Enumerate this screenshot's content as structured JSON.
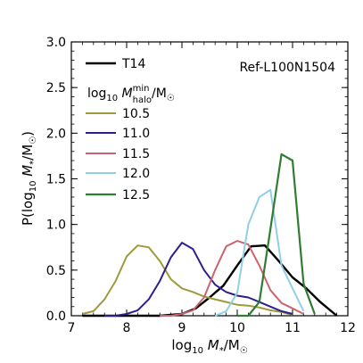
{
  "chart_data": {
    "type": "line",
    "annotation": "Ref-L100N1504",
    "legend_title": {
      "base": "log",
      "sub": "10",
      "sym": "M",
      "sup": "min",
      "low": "halo",
      "tail": "/M",
      "sun": "☉"
    },
    "xlabel": {
      "base": "log",
      "sub": "10",
      "sym": "M",
      "star": "*",
      "tail": "/M",
      "sun": "☉"
    },
    "ylabel": {
      "pre": "P(log",
      "sub": "10",
      "sym": "M",
      "star": "*",
      "tail": "/M",
      "sun": "☉",
      "close": ")"
    },
    "xlim": [
      7,
      12
    ],
    "ylim": [
      0,
      3
    ],
    "xticks": [
      7,
      8,
      9,
      10,
      11,
      12
    ],
    "yticks": [
      "0.0",
      "0.5",
      "1.0",
      "1.5",
      "2.0",
      "2.5",
      "3.0"
    ],
    "legend_position": "top-left",
    "series": [
      {
        "name": "T14",
        "color": "#000000",
        "width": 2.4,
        "x": [
          7.2,
          8.0,
          8.6,
          9.0,
          9.25,
          9.5,
          9.75,
          10.0,
          10.25,
          10.5,
          10.75,
          11.0,
          11.25,
          11.5,
          11.8
        ],
        "y": [
          0.0,
          0.0,
          0.0,
          0.02,
          0.08,
          0.2,
          0.33,
          0.55,
          0.76,
          0.77,
          0.6,
          0.42,
          0.3,
          0.15,
          0.0
        ]
      },
      {
        "name": "10.5",
        "color": "#9e9a3a",
        "width": 2.0,
        "x": [
          7.2,
          7.4,
          7.6,
          7.8,
          8.0,
          8.2,
          8.4,
          8.6,
          8.8,
          9.0,
          9.2,
          9.4,
          9.6,
          9.8,
          10.0,
          10.2,
          10.4,
          10.6,
          10.8,
          11.0
        ],
        "y": [
          0.02,
          0.05,
          0.18,
          0.38,
          0.65,
          0.77,
          0.75,
          0.6,
          0.4,
          0.3,
          0.26,
          0.21,
          0.18,
          0.15,
          0.12,
          0.11,
          0.09,
          0.06,
          0.04,
          0.01
        ]
      },
      {
        "name": "11.0",
        "color": "#2d1e8a",
        "width": 2.0,
        "x": [
          7.6,
          7.8,
          8.0,
          8.2,
          8.4,
          8.6,
          8.8,
          9.0,
          9.2,
          9.4,
          9.6,
          9.8,
          10.0,
          10.2,
          10.4,
          10.6,
          10.8,
          11.0
        ],
        "y": [
          0.0,
          0.0,
          0.02,
          0.06,
          0.18,
          0.38,
          0.64,
          0.8,
          0.73,
          0.5,
          0.34,
          0.26,
          0.22,
          0.2,
          0.15,
          0.1,
          0.05,
          0.02
        ]
      },
      {
        "name": "11.5",
        "color": "#cc6470",
        "width": 2.0,
        "x": [
          8.6,
          8.8,
          9.0,
          9.2,
          9.4,
          9.6,
          9.8,
          10.0,
          10.2,
          10.4,
          10.6,
          10.8,
          11.0,
          11.2
        ],
        "y": [
          0.0,
          0.0,
          0.02,
          0.06,
          0.2,
          0.5,
          0.76,
          0.82,
          0.78,
          0.55,
          0.28,
          0.14,
          0.08,
          0.02
        ]
      },
      {
        "name": "12.0",
        "color": "#8fd0e8",
        "width": 2.0,
        "x": [
          9.6,
          9.8,
          10.0,
          10.2,
          10.4,
          10.6,
          10.8,
          11.0,
          11.2
        ],
        "y": [
          0.0,
          0.05,
          0.25,
          1.0,
          1.3,
          1.38,
          0.55,
          0.3,
          0.05
        ]
      },
      {
        "name": "12.5",
        "color": "#2e7d32",
        "width": 2.2,
        "x": [
          10.0,
          10.2,
          10.4,
          10.6,
          10.8,
          11.0,
          11.2,
          11.4
        ],
        "y": [
          0.0,
          0.0,
          0.15,
          0.95,
          1.77,
          1.7,
          0.35,
          0.02
        ]
      }
    ]
  }
}
